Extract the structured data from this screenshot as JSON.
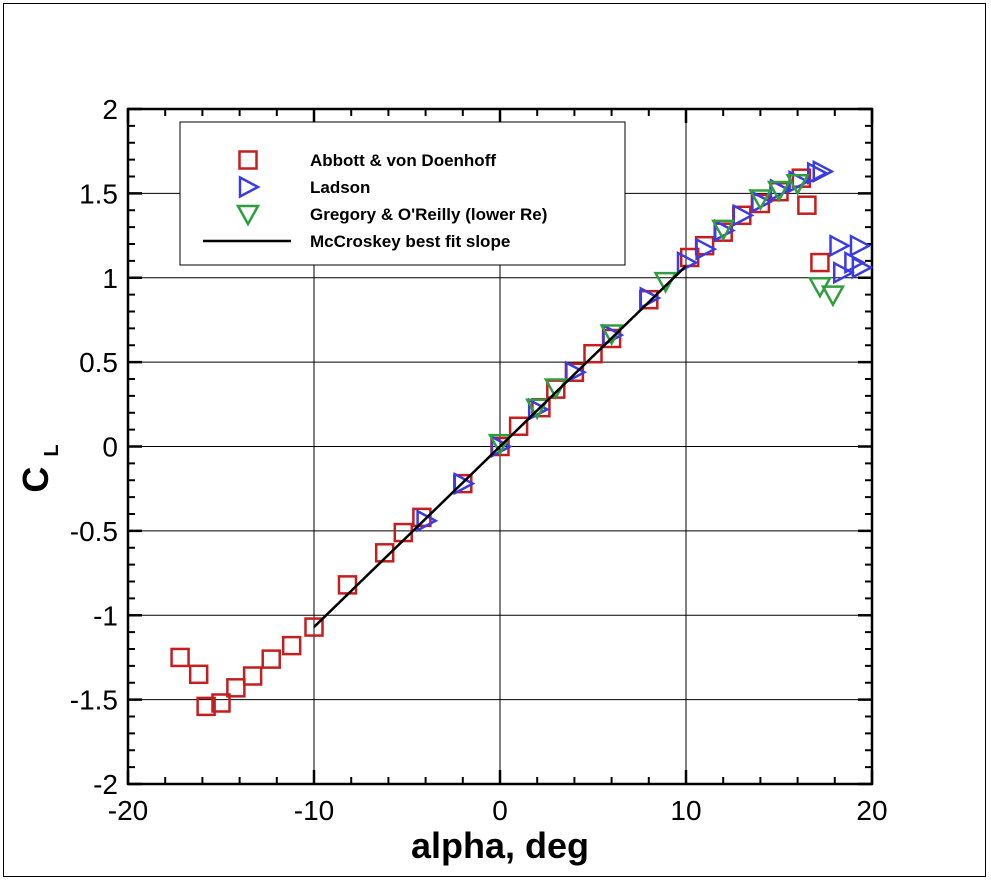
{
  "chart_data": {
    "type": "scatter",
    "xlabel": "alpha, deg",
    "ylabel_main": "C",
    "ylabel_sub": "L",
    "xlim": [
      -20,
      20
    ],
    "ylim": [
      -2,
      2
    ],
    "xticks": [
      -20,
      -10,
      0,
      10,
      20
    ],
    "yticks": [
      -2,
      -1.5,
      -1,
      -0.5,
      0,
      0.5,
      1,
      1.5,
      2
    ],
    "xtick_labels": [
      "-20",
      "-10",
      "0",
      "10",
      "20"
    ],
    "ytick_labels": [
      "-2",
      "-1.5",
      "-1",
      "-0.5",
      "0",
      "0.5",
      "1",
      "1.5",
      "2"
    ],
    "grid": true,
    "legend_placement": "top-left",
    "series": [
      {
        "name": "Abbott & von Doenhoff",
        "marker": "square",
        "color": "#c41e1e",
        "points": [
          [
            -17.2,
            -1.25
          ],
          [
            -16.2,
            -1.35
          ],
          [
            -15.8,
            -1.54
          ],
          [
            -15.0,
            -1.52
          ],
          [
            -14.2,
            -1.43
          ],
          [
            -13.3,
            -1.36
          ],
          [
            -12.3,
            -1.26
          ],
          [
            -11.2,
            -1.18
          ],
          [
            -10.0,
            -1.07
          ],
          [
            -8.2,
            -0.82
          ],
          [
            -6.2,
            -0.63
          ],
          [
            -5.2,
            -0.51
          ],
          [
            -4.2,
            -0.42
          ],
          [
            -2.0,
            -0.22
          ],
          [
            0.0,
            0.0
          ],
          [
            1.0,
            0.12
          ],
          [
            2.2,
            0.23
          ],
          [
            3.0,
            0.34
          ],
          [
            4.0,
            0.44
          ],
          [
            5.0,
            0.55
          ],
          [
            6.0,
            0.64
          ],
          [
            8.0,
            0.87
          ],
          [
            10.2,
            1.12
          ],
          [
            11.0,
            1.19
          ],
          [
            12.0,
            1.27
          ],
          [
            13.0,
            1.37
          ],
          [
            14.0,
            1.44
          ],
          [
            15.0,
            1.51
          ],
          [
            16.2,
            1.59
          ],
          [
            16.5,
            1.43
          ],
          [
            17.2,
            1.09
          ]
        ]
      },
      {
        "name": "Ladson",
        "marker": "triangle-right",
        "color": "#3b3be6",
        "points": [
          [
            -4.0,
            -0.44
          ],
          [
            -2.0,
            -0.22
          ],
          [
            0.0,
            0.0
          ],
          [
            2.0,
            0.22
          ],
          [
            4.0,
            0.44
          ],
          [
            6.0,
            0.66
          ],
          [
            8.0,
            0.88
          ],
          [
            10.0,
            1.09
          ],
          [
            11.0,
            1.17
          ],
          [
            12.0,
            1.28
          ],
          [
            13.0,
            1.37
          ],
          [
            14.0,
            1.45
          ],
          [
            15.0,
            1.52
          ],
          [
            16.0,
            1.57
          ],
          [
            17.0,
            1.62
          ],
          [
            17.3,
            1.63
          ],
          [
            18.2,
            1.19
          ],
          [
            18.4,
            1.03
          ],
          [
            19.0,
            1.09
          ],
          [
            19.3,
            1.19
          ],
          [
            19.4,
            1.06
          ]
        ]
      },
      {
        "name": "Gregory & O'Reilly (lower Re)",
        "marker": "triangle-down",
        "color": "#2e9e3e",
        "points": [
          [
            0.0,
            0.02
          ],
          [
            2.0,
            0.23
          ],
          [
            3.0,
            0.35
          ],
          [
            6.0,
            0.67
          ],
          [
            8.9,
            0.98
          ],
          [
            12.0,
            1.29
          ],
          [
            14.0,
            1.47
          ],
          [
            15.0,
            1.52
          ],
          [
            16.0,
            1.56
          ],
          [
            17.2,
            0.95
          ],
          [
            17.9,
            0.9
          ]
        ]
      },
      {
        "name": "McCroskey best fit slope",
        "marker": "line",
        "color": "#000000",
        "points": [
          [
            -10.0,
            -1.07
          ],
          [
            10.0,
            1.07
          ]
        ]
      }
    ]
  }
}
